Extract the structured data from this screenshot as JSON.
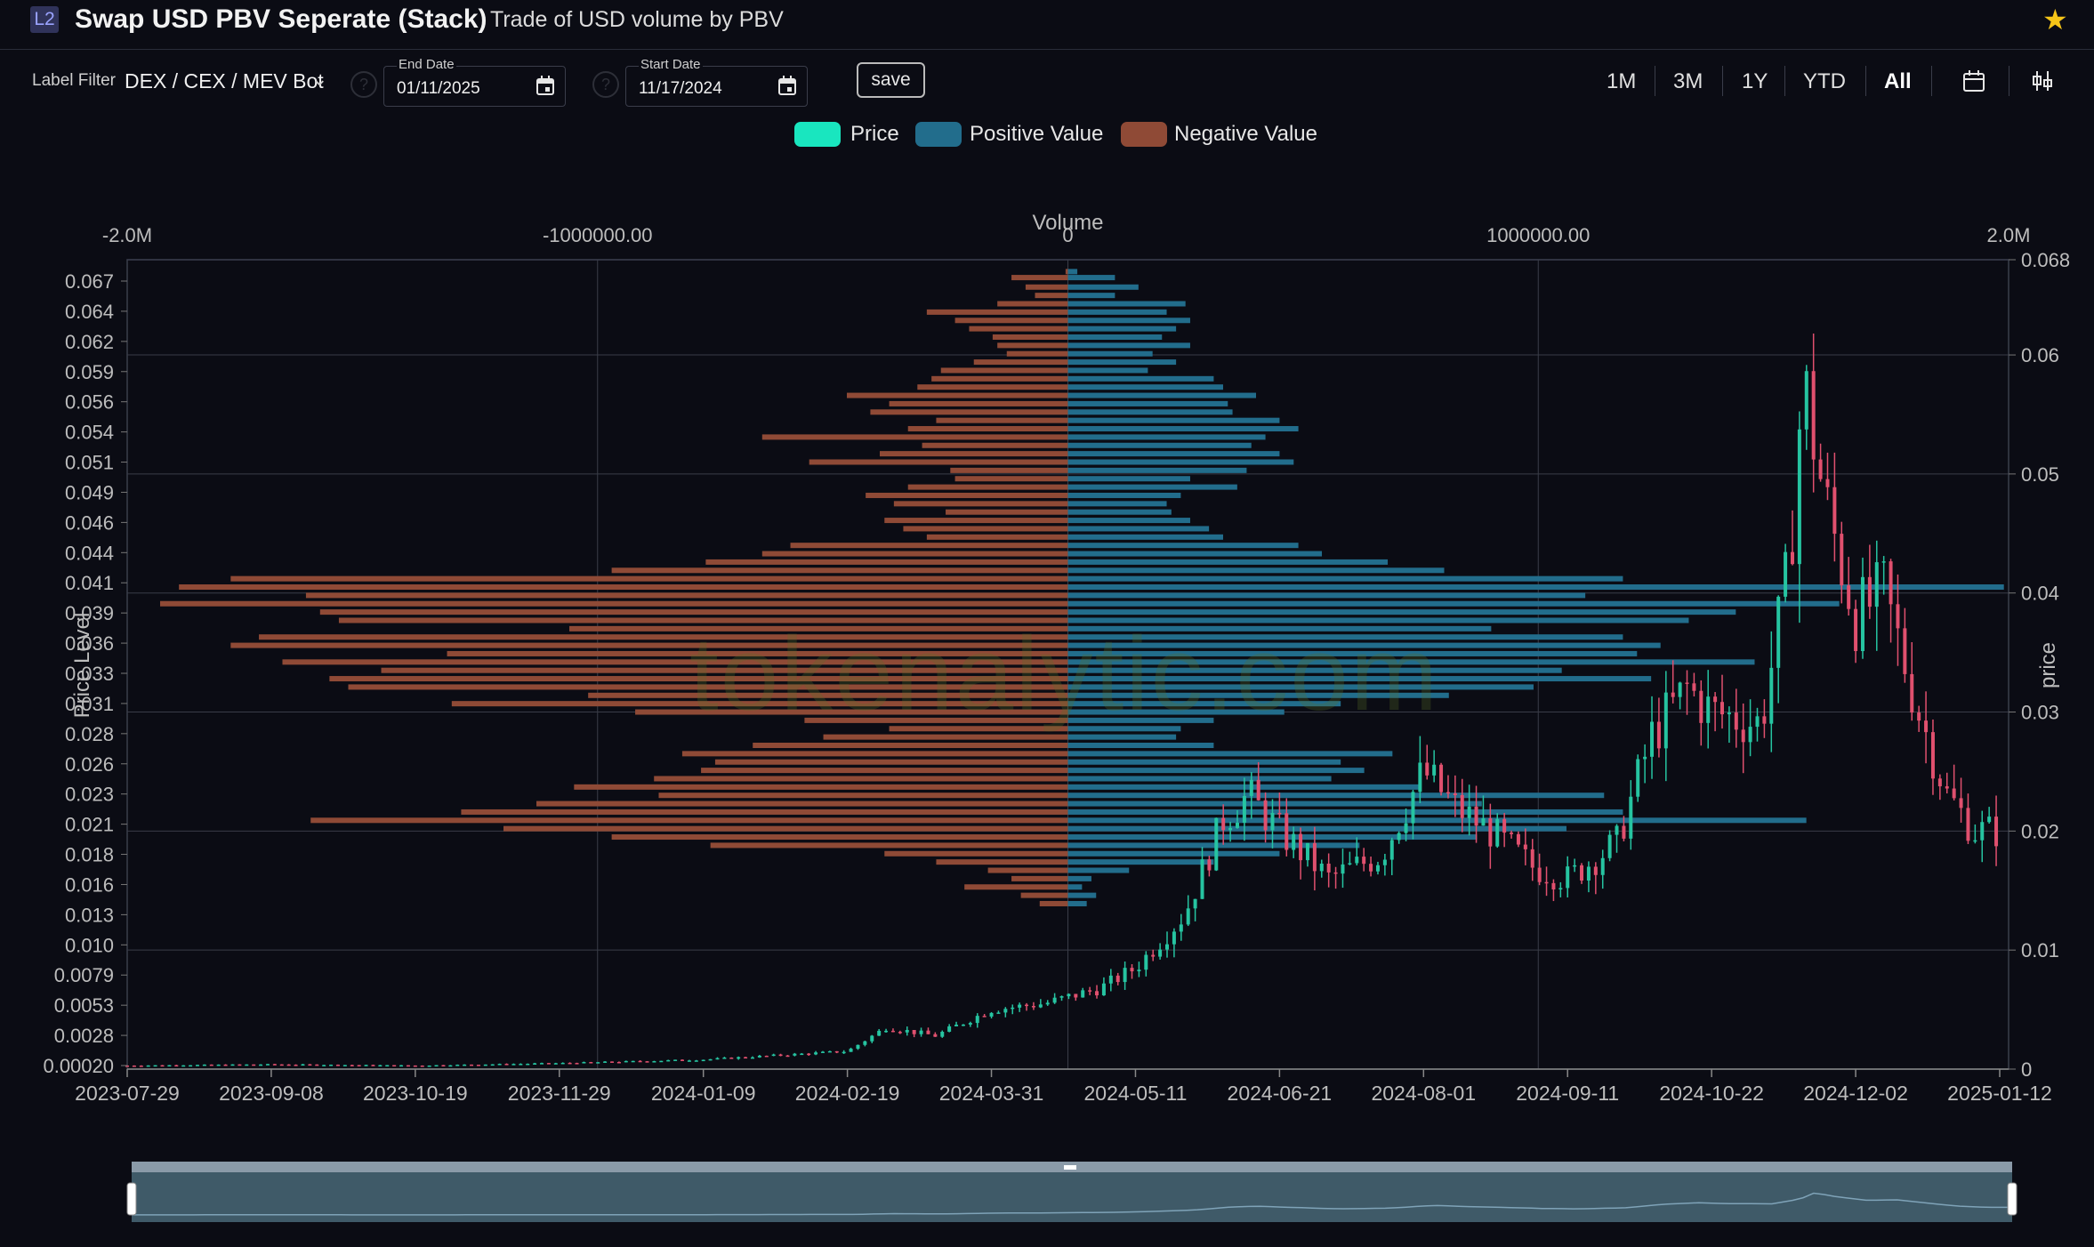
{
  "header": {
    "badge": "L2",
    "title": "Swap USD PBV Seperate (Stack)",
    "subtitle": "Trade of USD volume by PBV",
    "star_icon": "star-icon"
  },
  "toolbar": {
    "label_filter_label": "Label Filter",
    "label_filter_value": "DEX / CEX / MEV Bot",
    "end_date_label": "End Date",
    "end_date_value": "01/11/2025",
    "start_date_label": "Start Date",
    "start_date_value": "11/17/2024",
    "save_label": "save",
    "ranges": [
      "1M",
      "3M",
      "1Y",
      "YTD",
      "All"
    ],
    "active_range": "All"
  },
  "legend": [
    {
      "label": "Price",
      "color": "#19e6bf"
    },
    {
      "label": "Positive Value",
      "color": "#226d8c"
    },
    {
      "label": "Negative Value",
      "color": "#8f4a36"
    }
  ],
  "watermark": "tokenalytic.com",
  "colors": {
    "up": "#26c4a1",
    "down": "#e0506e",
    "positive": "#226d8c",
    "negative": "#8f4a36",
    "grid": "#3a3d48",
    "background": "#0b0c14"
  },
  "chart_data": {
    "type": "bar",
    "volume_axis": {
      "title": "Volume",
      "ticks": [
        "-2.0M",
        "-1000000.00",
        "0",
        "1000000.00",
        "2.0M"
      ],
      "range": [
        -2000000,
        2000000
      ]
    },
    "price_left_axis": {
      "title": "Price Level",
      "ticks": [
        "0.067",
        "0.064",
        "0.062",
        "0.059",
        "0.056",
        "0.054",
        "0.051",
        "0.049",
        "0.046",
        "0.044",
        "0.041",
        "0.039",
        "0.036",
        "0.033",
        "0.031",
        "0.028",
        "0.026",
        "0.023",
        "0.021",
        "0.018",
        "0.016",
        "0.013",
        "0.010",
        "0.0079",
        "0.0053",
        "0.0028",
        "0.00020"
      ]
    },
    "price_right_axis": {
      "title": "price",
      "ticks": [
        "0.068",
        "0.06",
        "0.05",
        "0.04",
        "0.03",
        "0.02",
        "0.01",
        "0"
      ],
      "range": [
        0,
        0.068
      ]
    },
    "x_axis": {
      "ticks": [
        "2023-07-29",
        "2023-09-08",
        "2023-10-19",
        "2023-11-29",
        "2024-01-09",
        "2024-02-19",
        "2024-03-31",
        "2024-05-11",
        "2024-06-21",
        "2024-08-01",
        "2024-09-11",
        "2024-10-22",
        "2024-12-02",
        "2025-01-12"
      ]
    },
    "pbv_profile": [
      {
        "price": 0.067,
        "positive": 20000,
        "negative": -5000
      },
      {
        "price": 0.0665,
        "positive": 100000,
        "negative": -120000
      },
      {
        "price": 0.0657,
        "positive": 150000,
        "negative": -90000
      },
      {
        "price": 0.065,
        "positive": 100000,
        "negative": -70000
      },
      {
        "price": 0.0643,
        "positive": 250000,
        "negative": -150000
      },
      {
        "price": 0.0636,
        "positive": 210000,
        "negative": -300000
      },
      {
        "price": 0.0629,
        "positive": 260000,
        "negative": -240000
      },
      {
        "price": 0.0622,
        "positive": 230000,
        "negative": -210000
      },
      {
        "price": 0.0615,
        "positive": 200000,
        "negative": -160000
      },
      {
        "price": 0.0608,
        "positive": 260000,
        "negative": -150000
      },
      {
        "price": 0.0601,
        "positive": 180000,
        "negative": -130000
      },
      {
        "price": 0.0594,
        "positive": 230000,
        "negative": -200000
      },
      {
        "price": 0.0587,
        "positive": 170000,
        "negative": -270000
      },
      {
        "price": 0.058,
        "positive": 310000,
        "negative": -290000
      },
      {
        "price": 0.0573,
        "positive": 330000,
        "negative": -320000
      },
      {
        "price": 0.0566,
        "positive": 400000,
        "negative": -470000
      },
      {
        "price": 0.0559,
        "positive": 340000,
        "negative": -380000
      },
      {
        "price": 0.0552,
        "positive": 350000,
        "negative": -420000
      },
      {
        "price": 0.0545,
        "positive": 450000,
        "negative": -280000
      },
      {
        "price": 0.0538,
        "positive": 490000,
        "negative": -340000
      },
      {
        "price": 0.0531,
        "positive": 420000,
        "negative": -650000
      },
      {
        "price": 0.0524,
        "positive": 390000,
        "negative": -310000
      },
      {
        "price": 0.0517,
        "positive": 450000,
        "negative": -400000
      },
      {
        "price": 0.051,
        "positive": 480000,
        "negative": -550000
      },
      {
        "price": 0.0503,
        "positive": 380000,
        "negative": -250000
      },
      {
        "price": 0.0496,
        "positive": 260000,
        "negative": -240000
      },
      {
        "price": 0.0489,
        "positive": 360000,
        "negative": -340000
      },
      {
        "price": 0.0482,
        "positive": 240000,
        "negative": -430000
      },
      {
        "price": 0.0475,
        "positive": 210000,
        "negative": -370000
      },
      {
        "price": 0.0468,
        "positive": 220000,
        "negative": -260000
      },
      {
        "price": 0.0461,
        "positive": 260000,
        "negative": -390000
      },
      {
        "price": 0.0454,
        "positive": 300000,
        "negative": -350000
      },
      {
        "price": 0.0447,
        "positive": 330000,
        "negative": -300000
      },
      {
        "price": 0.044,
        "positive": 490000,
        "negative": -590000
      },
      {
        "price": 0.0433,
        "positive": 540000,
        "negative": -650000
      },
      {
        "price": 0.0426,
        "positive": 680000,
        "negative": -770000
      },
      {
        "price": 0.0419,
        "positive": 800000,
        "negative": -970000
      },
      {
        "price": 0.0412,
        "positive": 1180000,
        "negative": -1780000
      },
      {
        "price": 0.0405,
        "positive": 1990000,
        "negative": -1890000
      },
      {
        "price": 0.0398,
        "positive": 1100000,
        "negative": -1620000
      },
      {
        "price": 0.0391,
        "positive": 1640000,
        "negative": -1930000
      },
      {
        "price": 0.0384,
        "positive": 1420000,
        "negative": -1590000
      },
      {
        "price": 0.0377,
        "positive": 1320000,
        "negative": -1550000
      },
      {
        "price": 0.037,
        "positive": 900000,
        "negative": -1060000
      },
      {
        "price": 0.0363,
        "positive": 1180000,
        "negative": -1720000
      },
      {
        "price": 0.0356,
        "positive": 1260000,
        "negative": -1780000
      },
      {
        "price": 0.0349,
        "positive": 1210000,
        "negative": -1320000
      },
      {
        "price": 0.0342,
        "positive": 1460000,
        "negative": -1670000
      },
      {
        "price": 0.0335,
        "positive": 1050000,
        "negative": -1460000
      },
      {
        "price": 0.0328,
        "positive": 1240000,
        "negative": -1570000
      },
      {
        "price": 0.0321,
        "positive": 990000,
        "negative": -1530000
      },
      {
        "price": 0.0314,
        "positive": 810000,
        "negative": -1020000
      },
      {
        "price": 0.0307,
        "positive": 580000,
        "negative": -1310000
      },
      {
        "price": 0.03,
        "positive": 460000,
        "negative": -920000
      },
      {
        "price": 0.0293,
        "positive": 310000,
        "negative": -560000
      },
      {
        "price": 0.0286,
        "positive": 240000,
        "negative": -380000
      },
      {
        "price": 0.0279,
        "positive": 230000,
        "negative": -520000
      },
      {
        "price": 0.0272,
        "positive": 310000,
        "negative": -670000
      },
      {
        "price": 0.0265,
        "positive": 690000,
        "negative": -820000
      },
      {
        "price": 0.0258,
        "positive": 580000,
        "negative": -750000
      },
      {
        "price": 0.0251,
        "positive": 630000,
        "negative": -780000
      },
      {
        "price": 0.0244,
        "positive": 560000,
        "negative": -880000
      },
      {
        "price": 0.0237,
        "positive": 750000,
        "negative": -1050000
      },
      {
        "price": 0.023,
        "positive": 1140000,
        "negative": -870000
      },
      {
        "price": 0.0223,
        "positive": 880000,
        "negative": -1130000
      },
      {
        "price": 0.0216,
        "positive": 1180000,
        "negative": -1290000
      },
      {
        "price": 0.0209,
        "positive": 1570000,
        "negative": -1610000
      },
      {
        "price": 0.0202,
        "positive": 1060000,
        "negative": -1200000
      },
      {
        "price": 0.0195,
        "positive": 870000,
        "negative": -970000
      },
      {
        "price": 0.0188,
        "positive": 620000,
        "negative": -760000
      },
      {
        "price": 0.0181,
        "positive": 450000,
        "negative": -390000
      },
      {
        "price": 0.0174,
        "positive": 310000,
        "negative": -280000
      },
      {
        "price": 0.0167,
        "positive": 130000,
        "negative": -170000
      },
      {
        "price": 0.016,
        "positive": 50000,
        "negative": -120000
      },
      {
        "price": 0.0153,
        "positive": 30000,
        "negative": -220000
      },
      {
        "price": 0.0146,
        "positive": 60000,
        "negative": -100000
      },
      {
        "price": 0.0139,
        "positive": 40000,
        "negative": -60000
      }
    ],
    "price_series": [
      {
        "date": "2023-07-29",
        "close": 0.0003
      },
      {
        "date": "2023-09-08",
        "close": 0.0004
      },
      {
        "date": "2023-10-19",
        "close": 0.0003
      },
      {
        "date": "2023-11-29",
        "close": 0.0005
      },
      {
        "date": "2024-01-09",
        "close": 0.0008
      },
      {
        "date": "2024-02-19",
        "close": 0.0015
      },
      {
        "date": "2024-03-01",
        "close": 0.0035
      },
      {
        "date": "2024-03-15",
        "close": 0.0028
      },
      {
        "date": "2024-03-31",
        "close": 0.005
      },
      {
        "date": "2024-04-15",
        "close": 0.0055
      },
      {
        "date": "2024-05-01",
        "close": 0.0068
      },
      {
        "date": "2024-05-11",
        "close": 0.0085
      },
      {
        "date": "2024-05-25",
        "close": 0.013
      },
      {
        "date": "2024-06-05",
        "close": 0.021
      },
      {
        "date": "2024-06-12",
        "close": 0.023
      },
      {
        "date": "2024-06-21",
        "close": 0.02
      },
      {
        "date": "2024-07-05",
        "close": 0.016
      },
      {
        "date": "2024-07-20",
        "close": 0.018
      },
      {
        "date": "2024-08-01",
        "close": 0.025
      },
      {
        "date": "2024-08-10",
        "close": 0.022
      },
      {
        "date": "2024-08-20",
        "close": 0.02
      },
      {
        "date": "2024-09-01",
        "close": 0.017
      },
      {
        "date": "2024-09-11",
        "close": 0.016
      },
      {
        "date": "2024-09-25",
        "close": 0.019
      },
      {
        "date": "2024-10-05",
        "close": 0.028
      },
      {
        "date": "2024-10-15",
        "close": 0.032
      },
      {
        "date": "2024-10-22",
        "close": 0.03
      },
      {
        "date": "2024-11-05",
        "close": 0.029
      },
      {
        "date": "2024-11-13",
        "close": 0.042
      },
      {
        "date": "2024-11-17",
        "close": 0.058
      },
      {
        "date": "2024-11-23",
        "close": 0.048
      },
      {
        "date": "2024-12-02",
        "close": 0.038
      },
      {
        "date": "2024-12-10",
        "close": 0.04
      },
      {
        "date": "2024-12-20",
        "close": 0.03
      },
      {
        "date": "2024-12-28",
        "close": 0.023
      },
      {
        "date": "2025-01-05",
        "close": 0.02
      },
      {
        "date": "2025-01-12",
        "close": 0.02
      }
    ]
  }
}
